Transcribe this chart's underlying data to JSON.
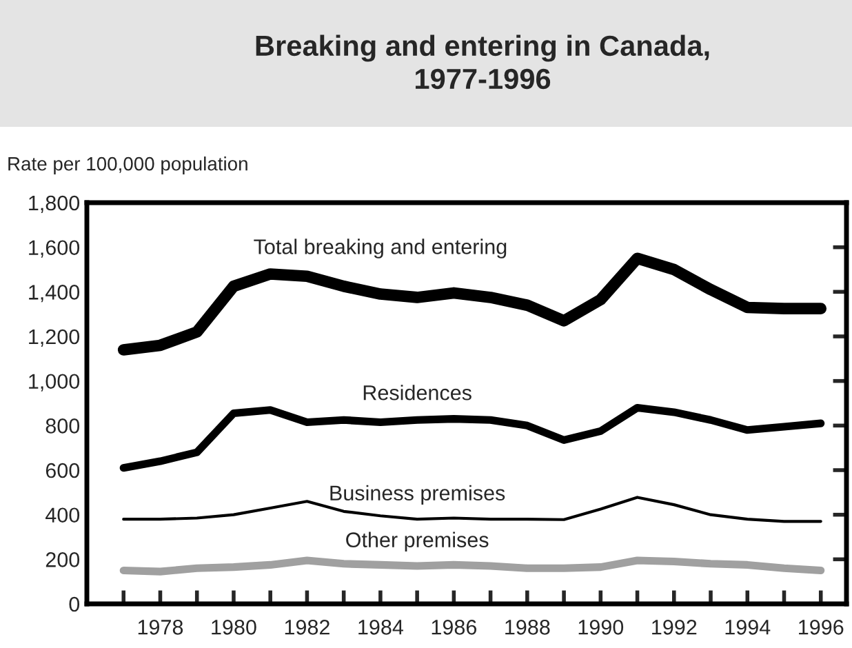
{
  "chart_data": {
    "type": "line",
    "title": "Breaking and entering in Canada,\n1977-1996",
    "ylabel": "Rate per 100,000 population",
    "x": [
      1977,
      1978,
      1979,
      1980,
      1981,
      1982,
      1983,
      1984,
      1985,
      1986,
      1987,
      1988,
      1989,
      1990,
      1991,
      1992,
      1993,
      1994,
      1995,
      1996
    ],
    "series": [
      {
        "name": "Total breaking and entering",
        "color": "#000000",
        "values": [
          1140,
          1160,
          1220,
          1425,
          1480,
          1470,
          1425,
          1390,
          1375,
          1395,
          1375,
          1340,
          1270,
          1365,
          1550,
          1500,
          1410,
          1330,
          1325,
          1325
        ]
      },
      {
        "name": "Residences",
        "color": "#000000",
        "values": [
          610,
          640,
          680,
          855,
          870,
          815,
          825,
          815,
          825,
          830,
          825,
          800,
          735,
          775,
          880,
          860,
          825,
          780,
          795,
          810
        ]
      },
      {
        "name": "Business premises",
        "color": "#000000",
        "values": [
          380,
          380,
          385,
          400,
          430,
          460,
          415,
          395,
          380,
          385,
          380,
          380,
          378,
          425,
          478,
          445,
          400,
          380,
          370,
          370
        ]
      },
      {
        "name": "Other premises",
        "color": "#a0a0a0",
        "values": [
          150,
          145,
          160,
          165,
          175,
          195,
          180,
          175,
          170,
          175,
          170,
          160,
          160,
          165,
          195,
          190,
          180,
          175,
          160,
          150
        ]
      }
    ],
    "xlim": [
      1976,
      1996.7
    ],
    "xticks": [
      {
        "value": 1977,
        "label": null
      },
      1978,
      {
        "value": 1979,
        "label": null
      },
      1980,
      {
        "value": 1981,
        "label": null
      },
      1982,
      {
        "value": 1983,
        "label": null
      },
      1984,
      {
        "value": 1985,
        "label": null
      },
      1986,
      {
        "value": 1987,
        "label": null
      },
      1988,
      {
        "value": 1989,
        "label": null
      },
      1990,
      {
        "value": 1991,
        "label": null
      },
      1992,
      {
        "value": 1993,
        "label": null
      },
      1994,
      {
        "value": 1995,
        "label": null
      },
      1996
    ],
    "ylim": [
      0,
      1800
    ],
    "yticks": [
      {
        "value": 0,
        "label": "0"
      },
      {
        "value": 200,
        "label": "200"
      },
      {
        "value": 400,
        "label": "400"
      },
      {
        "value": 600,
        "label": "600"
      },
      {
        "value": 800,
        "label": "800"
      },
      {
        "value": 1000,
        "label": "1,000"
      },
      {
        "value": 1200,
        "label": "1,200"
      },
      {
        "value": 1400,
        "label": "1,400"
      },
      {
        "value": 1600,
        "label": "1,600"
      },
      {
        "value": 1800,
        "label": "1,800"
      }
    ],
    "grid": false,
    "legend": false,
    "marker": "none",
    "line_style": "solid"
  }
}
